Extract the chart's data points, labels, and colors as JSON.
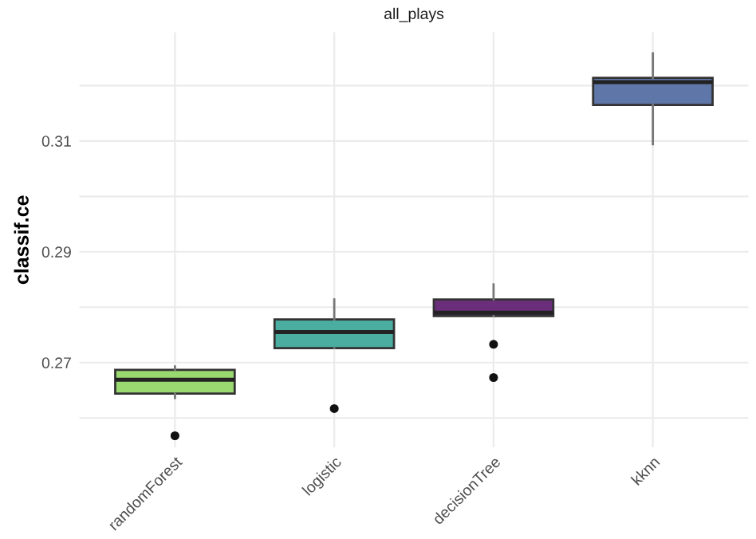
{
  "chart_data": {
    "type": "box",
    "title": "all_plays",
    "ylabel": "classif.ce",
    "categories": [
      "randomForest",
      "logistic",
      "decisionTree",
      "kknn"
    ],
    "colors": [
      "#9ad870",
      "#4bada0",
      "#6a2e7a",
      "#5f77a8"
    ],
    "boxes": [
      {
        "low": 0.2636,
        "q1": 0.2644,
        "median": 0.2669,
        "q3": 0.2687,
        "high": 0.2693,
        "outliers": [
          0.2568
        ]
      },
      {
        "low": 0.2726,
        "q1": 0.2726,
        "median": 0.2755,
        "q3": 0.2778,
        "high": 0.2814,
        "outliers": [
          0.2617
        ]
      },
      {
        "low": 0.2784,
        "q1": 0.2784,
        "median": 0.279,
        "q3": 0.2814,
        "high": 0.2841,
        "outliers": [
          0.2733,
          0.2673
        ]
      },
      {
        "low": 0.3094,
        "q1": 0.3165,
        "median": 0.3206,
        "q3": 0.3214,
        "high": 0.3258
      }
    ],
    "ylim": [
      0.2547,
      0.3296
    ],
    "yticks": [
      {
        "value": 0.26,
        "label": null
      },
      0.27,
      {
        "value": 0.28,
        "label": null
      },
      0.29,
      {
        "value": 0.3,
        "label": null
      },
      0.31,
      {
        "value": 0.32,
        "label": null
      }
    ],
    "grid": true
  }
}
